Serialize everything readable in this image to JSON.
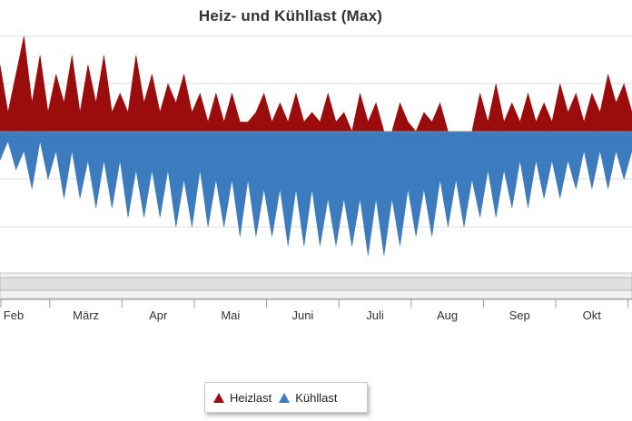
{
  "chart_data": {
    "type": "area",
    "title": "Heiz- und Kühllast (Max)",
    "x_tick_labels": [
      "Feb",
      "März",
      "Apr",
      "Mai",
      "Juni",
      "Juli",
      "Aug",
      "Sep",
      "Okt"
    ],
    "grid": true,
    "legend_position": "bottom",
    "series": [
      {
        "name": "Heizlast",
        "color": "#9b0c0c",
        "values": [
          7,
          2,
          6,
          10,
          3,
          8,
          2,
          6,
          3,
          8,
          2,
          7,
          3,
          8,
          2,
          4,
          2,
          8,
          3,
          6,
          2,
          5,
          3,
          6,
          2,
          4,
          1,
          4,
          1,
          4,
          1,
          1,
          2,
          4,
          1,
          3,
          1,
          4,
          1,
          2,
          1,
          4,
          1,
          2,
          0,
          4,
          1,
          3,
          0,
          0,
          3,
          1,
          0,
          2,
          1,
          3,
          0,
          0,
          0,
          0,
          4,
          1,
          5,
          1,
          3,
          1,
          4,
          1,
          3,
          1,
          5,
          2,
          4,
          1,
          4,
          2,
          6,
          3,
          5,
          2
        ]
      },
      {
        "name": "Kühllast",
        "color": "#3c7bbd",
        "values": [
          -3,
          -1,
          -4,
          -2,
          -6,
          -1,
          -5,
          -2,
          -7,
          -2,
          -7,
          -3,
          -8,
          -3,
          -8,
          -3,
          -9,
          -4,
          -9,
          -4,
          -9,
          -4,
          -10,
          -5,
          -10,
          -4,
          -10,
          -5,
          -10,
          -5,
          -11,
          -5,
          -11,
          -6,
          -11,
          -6,
          -12,
          -6,
          -12,
          -6,
          -12,
          -7,
          -12,
          -7,
          -12,
          -7,
          -13,
          -7,
          -13,
          -7,
          -12,
          -6,
          -11,
          -6,
          -11,
          -5,
          -10,
          -5,
          -10,
          -5,
          -9,
          -4,
          -9,
          -4,
          -8,
          -3,
          -8,
          -3,
          -7,
          -3,
          -7,
          -3,
          -6,
          -2,
          -6,
          -2,
          -6,
          -2,
          -5,
          -2
        ]
      }
    ]
  }
}
